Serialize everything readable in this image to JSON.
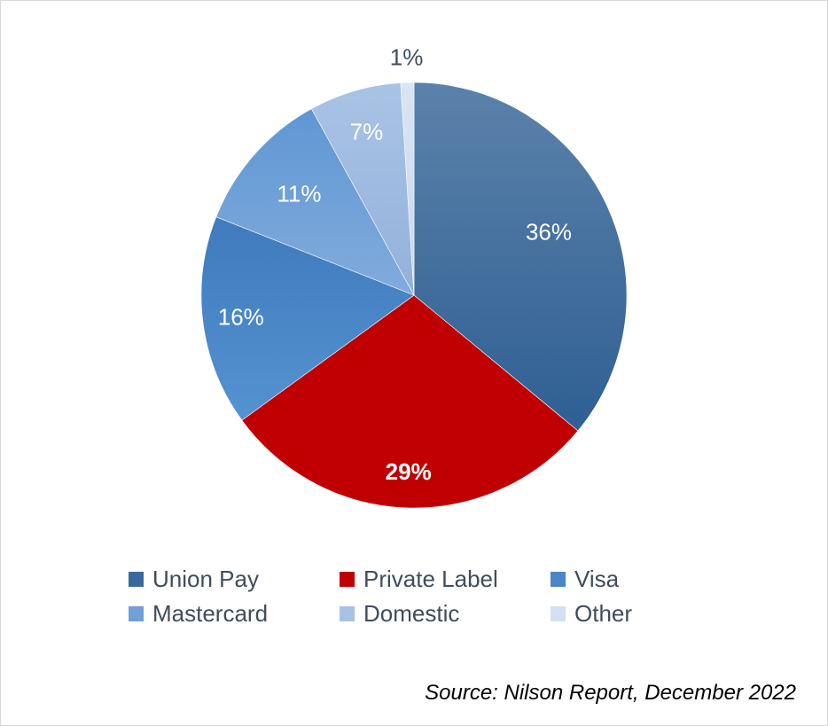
{
  "chart_data": {
    "type": "pie",
    "categories": [
      "Union Pay",
      "Private Label",
      "Visa",
      "Mastercard",
      "Domestic",
      "Other"
    ],
    "values": [
      36,
      29,
      16,
      11,
      7,
      1
    ],
    "labels": [
      "36%",
      "29%",
      "16%",
      "11%",
      "7%",
      "1%"
    ],
    "colors": [
      "#3a6a9c",
      "#c00000",
      "#4a86c5",
      "#6fa0d8",
      "#a8c2e4",
      "#d3e0f2"
    ],
    "legend_position": "bottom",
    "source": "Source: Nilson Report, December 2022"
  }
}
